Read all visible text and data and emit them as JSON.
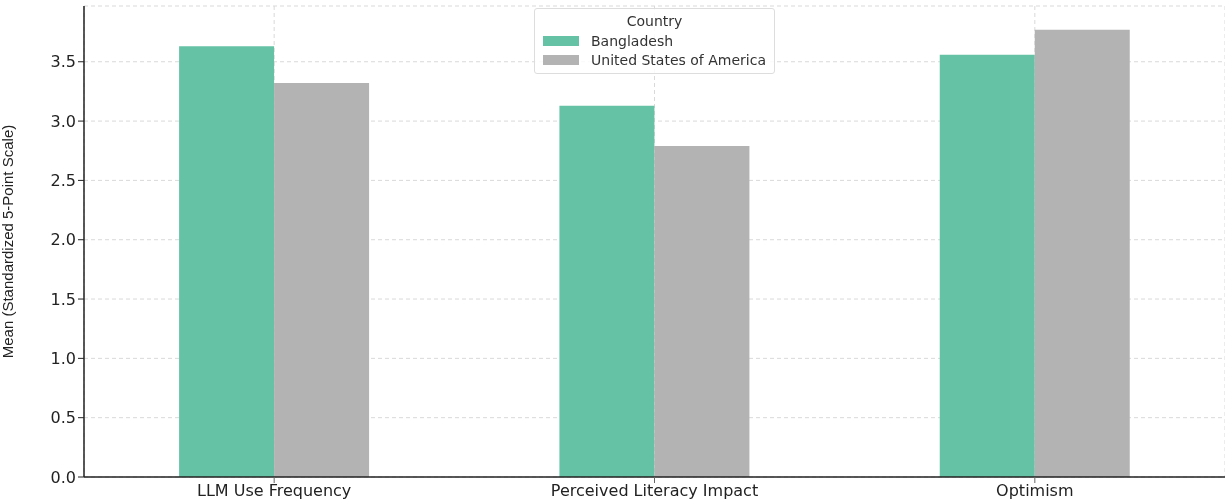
{
  "chart_data": {
    "type": "bar",
    "ylabel": "Mean (Standardized 5-Point Scale)",
    "legend_title": "Country",
    "categories": [
      "LLM Use Frequency",
      "Perceived Literacy Impact",
      "Optimism"
    ],
    "series": [
      {
        "name": "Bangladesh",
        "color": "#66c2a5",
        "values": [
          3.63,
          3.13,
          3.56
        ]
      },
      {
        "name": "United States of America",
        "color": "#b3b3b3",
        "values": [
          3.32,
          2.79,
          3.77
        ]
      }
    ],
    "ylim": [
      0,
      3.97
    ],
    "yticks": [
      {
        "value": 0,
        "label": "0.0"
      },
      {
        "value": 0.5,
        "label": "0.5"
      },
      {
        "value": 1,
        "label": "1.0"
      },
      {
        "value": 1.5,
        "label": "1.5"
      },
      {
        "value": 2,
        "label": "2.0"
      },
      {
        "value": 2.5,
        "label": "2.5"
      },
      {
        "value": 3,
        "label": "3.0"
      },
      {
        "value": 3.5,
        "label": "3.5"
      }
    ],
    "grid": true,
    "legend": "top"
  }
}
